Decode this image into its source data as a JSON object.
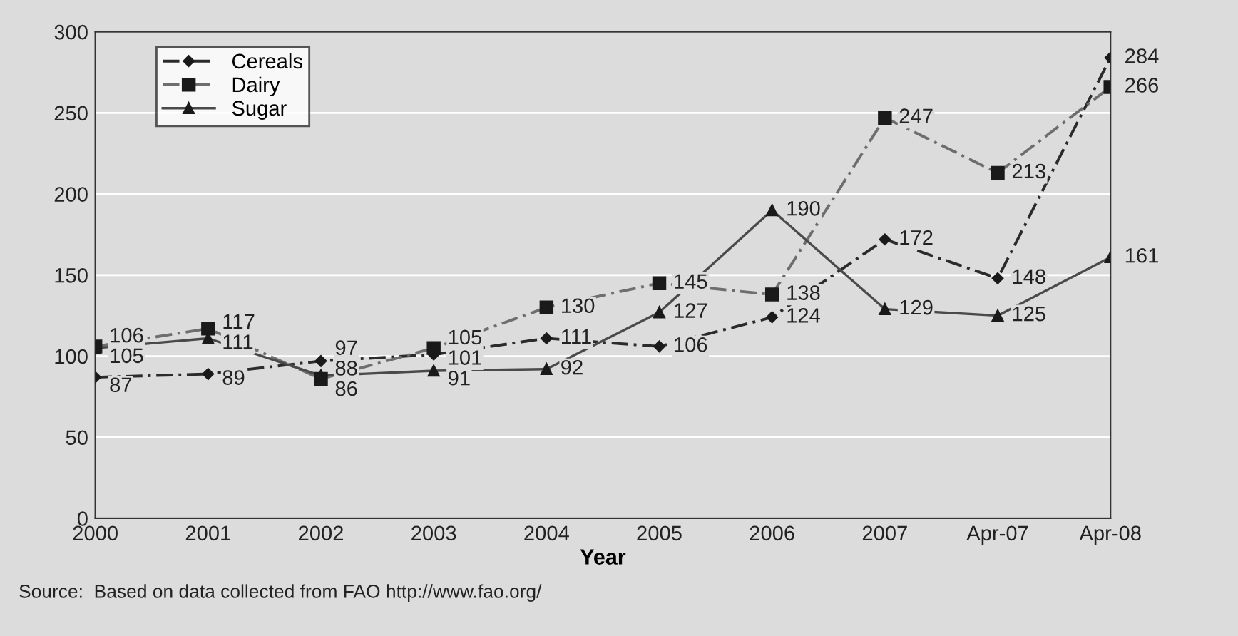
{
  "chart_data": {
    "type": "line",
    "xlabel": "Year",
    "categories": [
      "2000",
      "2001",
      "2002",
      "2003",
      "2004",
      "2005",
      "2006",
      "2007",
      "Apr-07",
      "Apr-08"
    ],
    "series": [
      {
        "name": "Cereals",
        "color": "#2b2b2b",
        "marker": "diamond",
        "line_style": "dashed",
        "values": [
          87,
          89,
          97,
          101,
          111,
          106,
          124,
          172,
          148,
          284
        ]
      },
      {
        "name": "Dairy",
        "color": "#6e6e6e",
        "marker": "square",
        "line_style": "dashed",
        "values": [
          106,
          117,
          86,
          105,
          130,
          145,
          138,
          247,
          213,
          266
        ]
      },
      {
        "name": "Sugar",
        "color": "#4a4a4a",
        "marker": "triangle",
        "line_style": "solid",
        "values": [
          105,
          111,
          88,
          91,
          92,
          127,
          190,
          129,
          125,
          161
        ]
      }
    ],
    "ylim": [
      0,
      300
    ],
    "yticks": [
      0,
      50,
      100,
      150,
      200,
      250,
      300
    ],
    "grid": "y",
    "legend": "top left",
    "data_labels": true,
    "annotations": [
      "Source:  Based on data collected from FAO http://www.fao.org/"
    ]
  }
}
